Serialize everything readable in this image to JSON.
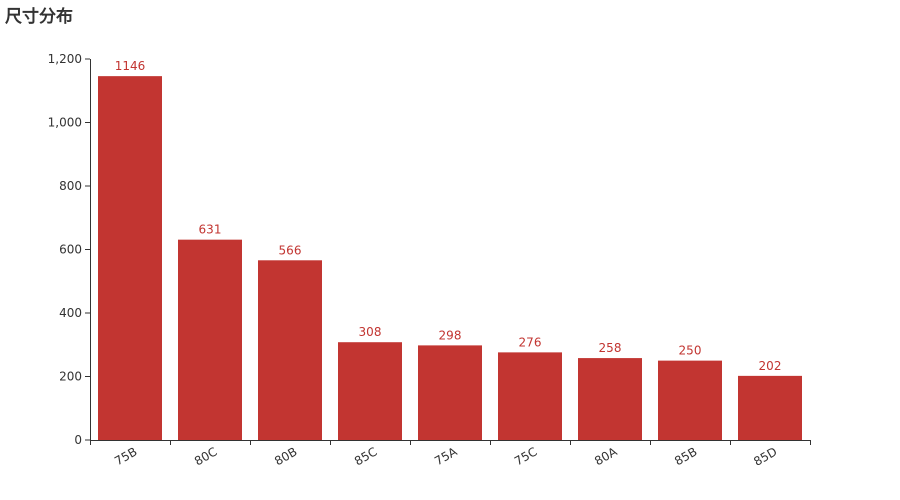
{
  "chart_data": {
    "type": "bar",
    "title": "尺寸分布",
    "categories": [
      "75B",
      "80C",
      "80B",
      "85C",
      "75A",
      "75C",
      "80A",
      "85B",
      "85D"
    ],
    "values": [
      1146,
      631,
      566,
      308,
      298,
      276,
      258,
      250,
      202
    ],
    "ylim": [
      0,
      1200
    ],
    "yticks": [
      "0",
      "200",
      "400",
      "600",
      "800",
      "1,000",
      "1,200"
    ],
    "ytick_values": [
      0,
      200,
      400,
      600,
      800,
      1000,
      1200
    ],
    "xlabel": "",
    "ylabel": "",
    "grid": false,
    "data_labels": true,
    "x_tick_rotation": "rotated",
    "colors": {
      "bar": "#c23531",
      "label": "#c23531",
      "axis": "#333333",
      "tick_text": "#333333",
      "title": "#333333"
    }
  }
}
